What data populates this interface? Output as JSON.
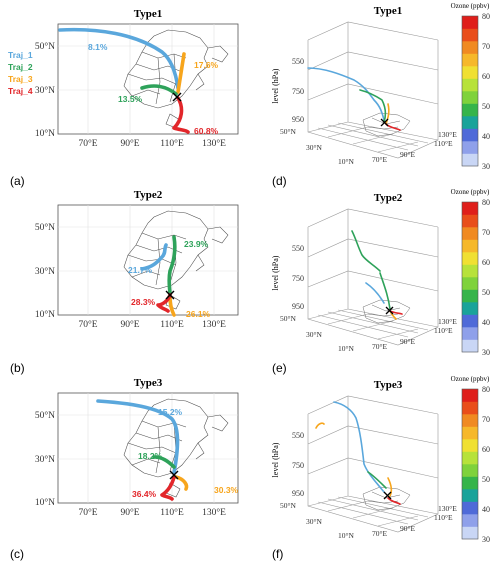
{
  "figure": {
    "legend": {
      "items": [
        {
          "label": "Traj_1",
          "color": "#5aa7dc"
        },
        {
          "label": "Traj_2",
          "color": "#2ea25a"
        },
        {
          "label": "Traj_3",
          "color": "#f7a51c"
        },
        {
          "label": "Traj_4",
          "color": "#e2262a"
        }
      ]
    },
    "map_axes": {
      "y_ticks": [
        "50°N",
        "30°N",
        "10°N"
      ],
      "x_ticks": [
        "70°E",
        "90°E",
        "110°E",
        "130°E"
      ]
    },
    "map_panels": [
      {
        "panel_label": "(a)",
        "title": "Type1",
        "percents": [
          {
            "text": "8.1%",
            "color": "#5aa7dc"
          },
          {
            "text": "17.6%",
            "color": "#f7a51c"
          },
          {
            "text": "13.5%",
            "color": "#2ea25a"
          },
          {
            "text": "60.8%",
            "color": "#e2262a"
          }
        ]
      },
      {
        "panel_label": "(b)",
        "title": "Type2",
        "percents": [
          {
            "text": "23.9%",
            "color": "#2ea25a"
          },
          {
            "text": "21.7%",
            "color": "#5aa7dc"
          },
          {
            "text": "28.3%",
            "color": "#e2262a"
          },
          {
            "text": "26.1%",
            "color": "#f7a51c"
          }
        ]
      },
      {
        "panel_label": "(c)",
        "title": "Type3",
        "percents": [
          {
            "text": "15.2%",
            "color": "#5aa7dc"
          },
          {
            "text": "18.2%",
            "color": "#2ea25a"
          },
          {
            "text": "36.4%",
            "color": "#e2262a"
          },
          {
            "text": "30.3%",
            "color": "#f7a51c"
          }
        ]
      }
    ],
    "panels_3d": [
      {
        "panel_label": "(d)",
        "title": "Type1"
      },
      {
        "panel_label": "(e)",
        "title": "Type2"
      },
      {
        "panel_label": "(f)",
        "title": "Type3"
      }
    ],
    "axes_3d": {
      "z_label": "level (hPa)",
      "z_ticks": [
        "550",
        "750",
        "950"
      ],
      "lat_ticks": [
        "50°N",
        "30°N",
        "10°N"
      ],
      "lon_ticks": [
        "70°E",
        "90°E",
        "110°E",
        "130°E"
      ]
    },
    "colorbar": {
      "title": "Ozone (ppbv)",
      "ticks": [
        "80",
        "70",
        "60",
        "50",
        "40",
        "30"
      ],
      "colors": [
        "#c9d6f5",
        "#8fa0ea",
        "#4f6ad8",
        "#1aa39a",
        "#36b44a",
        "#7fd23b",
        "#b7e23a",
        "#f0e032",
        "#f6b82a",
        "#f08a22",
        "#e94e1b",
        "#df1f1b"
      ]
    }
  }
}
